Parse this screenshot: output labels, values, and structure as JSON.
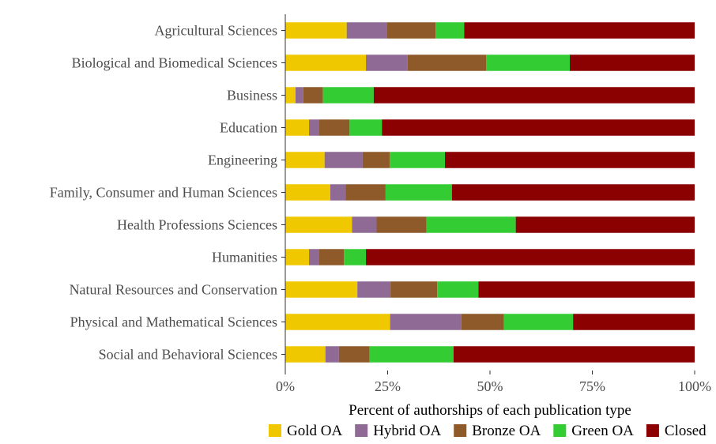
{
  "chart_data": {
    "type": "bar",
    "orientation": "horizontal",
    "stacked": true,
    "xlabel": "Percent of authorships of each publication type",
    "xlim": [
      0,
      100
    ],
    "xticks": [
      0,
      25,
      50,
      75,
      100
    ],
    "xtick_labels": [
      "0%",
      "25%",
      "50%",
      "75%",
      "100%"
    ],
    "legend_position": "bottom",
    "grid": false,
    "categories": [
      "Agricultural Sciences",
      "Biological and Biomedical Sciences",
      "Business",
      "Education",
      "Engineering",
      "Family, Consumer and Human Sciences",
      "Health Professions Sciences",
      "Humanities",
      "Natural Resources and Conservation",
      "Physical and Mathematical Sciences",
      "Social and Behavioral Sciences"
    ],
    "series": [
      {
        "name": "Gold OA",
        "color": "#F0C800",
        "values": [
          15.0,
          19.7,
          2.5,
          5.8,
          9.6,
          11.0,
          16.3,
          5.8,
          17.6,
          25.6,
          9.8
        ]
      },
      {
        "name": "Hybrid OA",
        "color": "#8F6A94",
        "values": [
          9.9,
          10.2,
          1.9,
          2.5,
          9.3,
          3.7,
          6.0,
          2.5,
          8.1,
          17.4,
          3.3
        ]
      },
      {
        "name": "Bronze OA",
        "color": "#8E5A2A",
        "values": [
          11.8,
          19.2,
          4.8,
          7.4,
          6.6,
          9.8,
          12.2,
          6.0,
          11.4,
          10.4,
          7.5
        ]
      },
      {
        "name": "Green OA",
        "color": "#33CC33",
        "values": [
          7.0,
          20.4,
          12.4,
          7.9,
          13.5,
          16.2,
          21.8,
          5.4,
          10.1,
          16.9,
          20.5
        ]
      },
      {
        "name": "Closed",
        "color": "#8B0000",
        "values": [
          56.3,
          30.5,
          78.4,
          76.4,
          61.0,
          59.3,
          43.7,
          80.3,
          52.8,
          29.7,
          58.9
        ]
      }
    ]
  }
}
